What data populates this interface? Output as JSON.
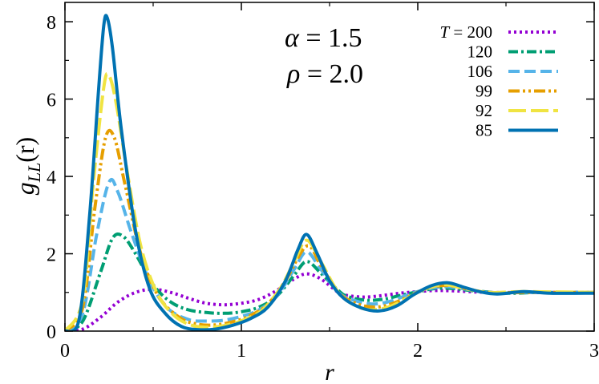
{
  "chart_data": {
    "type": "line",
    "xlabel": "r",
    "ylabel_main": "g",
    "ylabel_sub": "LL",
    "ylabel_arg": "(r)",
    "xlim": [
      0,
      3
    ],
    "ylim": [
      0,
      8.5
    ],
    "x_ticks": [
      0,
      1,
      2,
      3
    ],
    "y_ticks": [
      0,
      2,
      4,
      6,
      8
    ],
    "grid": false,
    "legend_placement": "top-right",
    "legend_prefix": "T = ",
    "annotations": [
      {
        "name": "alpha",
        "symbol": "α",
        "text": " = 1.5"
      },
      {
        "name": "rho",
        "symbol": "ρ",
        "text": " = 2.0"
      }
    ],
    "series": [
      {
        "name": "200",
        "color": "#9400d3",
        "dash": "3,4",
        "width": 4,
        "points": [
          [
            0,
            0
          ],
          [
            0.1,
            0.05
          ],
          [
            0.2,
            0.35
          ],
          [
            0.3,
            0.75
          ],
          [
            0.4,
            1.0
          ],
          [
            0.5,
            1.08
          ],
          [
            0.6,
            1.0
          ],
          [
            0.7,
            0.85
          ],
          [
            0.8,
            0.72
          ],
          [
            0.9,
            0.68
          ],
          [
            1.0,
            0.72
          ],
          [
            1.1,
            0.82
          ],
          [
            1.2,
            1.05
          ],
          [
            1.3,
            1.35
          ],
          [
            1.37,
            1.48
          ],
          [
            1.45,
            1.35
          ],
          [
            1.55,
            1.0
          ],
          [
            1.6,
            0.92
          ],
          [
            1.7,
            0.88
          ],
          [
            1.8,
            0.92
          ],
          [
            1.9,
            0.98
          ],
          [
            2.0,
            1.02
          ],
          [
            2.1,
            1.05
          ],
          [
            2.2,
            1.04
          ],
          [
            2.4,
            1.0
          ],
          [
            2.6,
            1.0
          ],
          [
            2.8,
            1.0
          ],
          [
            3.0,
            1.0
          ]
        ]
      },
      {
        "name": "120",
        "color": "#009e73",
        "dash": "12,4,3,4",
        "width": 4,
        "points": [
          [
            0,
            0
          ],
          [
            0.1,
            0.25
          ],
          [
            0.2,
            1.5
          ],
          [
            0.27,
            2.4
          ],
          [
            0.33,
            2.45
          ],
          [
            0.4,
            2.0
          ],
          [
            0.5,
            1.2
          ],
          [
            0.6,
            0.75
          ],
          [
            0.7,
            0.55
          ],
          [
            0.8,
            0.48
          ],
          [
            0.9,
            0.46
          ],
          [
            1.0,
            0.5
          ],
          [
            1.1,
            0.62
          ],
          [
            1.2,
            0.9
          ],
          [
            1.3,
            1.45
          ],
          [
            1.37,
            1.8
          ],
          [
            1.45,
            1.5
          ],
          [
            1.55,
            1.05
          ],
          [
            1.6,
            0.9
          ],
          [
            1.7,
            0.8
          ],
          [
            1.8,
            0.82
          ],
          [
            1.9,
            0.92
          ],
          [
            2.0,
            1.02
          ],
          [
            2.1,
            1.1
          ],
          [
            2.2,
            1.1
          ],
          [
            2.3,
            1.05
          ],
          [
            2.5,
            0.98
          ],
          [
            2.7,
            1.0
          ],
          [
            3.0,
            1.0
          ]
        ]
      },
      {
        "name": "106",
        "color": "#56b4e9",
        "dash": "14,6",
        "width": 4,
        "points": [
          [
            0,
            0
          ],
          [
            0.1,
            0.45
          ],
          [
            0.18,
            2.5
          ],
          [
            0.25,
            3.85
          ],
          [
            0.3,
            3.6
          ],
          [
            0.38,
            2.5
          ],
          [
            0.48,
            1.3
          ],
          [
            0.58,
            0.6
          ],
          [
            0.7,
            0.3
          ],
          [
            0.8,
            0.26
          ],
          [
            0.9,
            0.28
          ],
          [
            1.0,
            0.38
          ],
          [
            1.1,
            0.55
          ],
          [
            1.2,
            0.9
          ],
          [
            1.3,
            1.6
          ],
          [
            1.37,
            2.05
          ],
          [
            1.45,
            1.6
          ],
          [
            1.55,
            1.0
          ],
          [
            1.65,
            0.78
          ],
          [
            1.75,
            0.7
          ],
          [
            1.85,
            0.78
          ],
          [
            1.95,
            0.95
          ],
          [
            2.05,
            1.08
          ],
          [
            2.15,
            1.15
          ],
          [
            2.25,
            1.1
          ],
          [
            2.4,
            1.0
          ],
          [
            2.6,
            1.0
          ],
          [
            3.0,
            1.0
          ]
        ]
      },
      {
        "name": "99",
        "color": "#e69f00",
        "dash": "14,4,3,4,3,4",
        "width": 4,
        "points": [
          [
            0,
            0
          ],
          [
            0.1,
            0.6
          ],
          [
            0.17,
            3.2
          ],
          [
            0.23,
            5.0
          ],
          [
            0.28,
            5.0
          ],
          [
            0.34,
            3.8
          ],
          [
            0.43,
            2.0
          ],
          [
            0.53,
            0.9
          ],
          [
            0.65,
            0.35
          ],
          [
            0.75,
            0.18
          ],
          [
            0.85,
            0.16
          ],
          [
            0.95,
            0.24
          ],
          [
            1.05,
            0.4
          ],
          [
            1.15,
            0.7
          ],
          [
            1.25,
            1.3
          ],
          [
            1.37,
            2.2
          ],
          [
            1.45,
            1.7
          ],
          [
            1.55,
            1.0
          ],
          [
            1.65,
            0.72
          ],
          [
            1.75,
            0.62
          ],
          [
            1.85,
            0.7
          ],
          [
            1.95,
            0.9
          ],
          [
            2.05,
            1.1
          ],
          [
            2.15,
            1.18
          ],
          [
            2.25,
            1.12
          ],
          [
            2.4,
            1.0
          ],
          [
            2.6,
            1.0
          ],
          [
            3.0,
            1.0
          ]
        ]
      },
      {
        "name": "92",
        "color": "#f0e442",
        "dash": "22,6",
        "width": 4,
        "points": [
          [
            0,
            0
          ],
          [
            0.1,
            0.8
          ],
          [
            0.16,
            3.8
          ],
          [
            0.22,
            6.3
          ],
          [
            0.25,
            6.6
          ],
          [
            0.29,
            5.9
          ],
          [
            0.35,
            4.2
          ],
          [
            0.43,
            2.2
          ],
          [
            0.52,
            1.0
          ],
          [
            0.62,
            0.4
          ],
          [
            0.72,
            0.15
          ],
          [
            0.82,
            0.1
          ],
          [
            0.92,
            0.16
          ],
          [
            1.02,
            0.3
          ],
          [
            1.12,
            0.55
          ],
          [
            1.22,
            1.1
          ],
          [
            1.3,
            1.8
          ],
          [
            1.37,
            2.35
          ],
          [
            1.45,
            1.8
          ],
          [
            1.55,
            1.0
          ],
          [
            1.65,
            0.65
          ],
          [
            1.75,
            0.55
          ],
          [
            1.85,
            0.65
          ],
          [
            1.95,
            0.88
          ],
          [
            2.05,
            1.1
          ],
          [
            2.15,
            1.2
          ],
          [
            2.25,
            1.12
          ],
          [
            2.4,
            1.0
          ],
          [
            2.6,
            1.02
          ],
          [
            3.0,
            1.0
          ]
        ]
      },
      {
        "name": "85",
        "color": "#0072b2",
        "dash": "",
        "width": 4,
        "points": [
          [
            0,
            0
          ],
          [
            0.08,
            0.3
          ],
          [
            0.14,
            3.0
          ],
          [
            0.19,
            6.2
          ],
          [
            0.22,
            7.9
          ],
          [
            0.24,
            8.1
          ],
          [
            0.27,
            7.3
          ],
          [
            0.32,
            5.2
          ],
          [
            0.4,
            2.6
          ],
          [
            0.48,
            1.1
          ],
          [
            0.57,
            0.45
          ],
          [
            0.66,
            0.12
          ],
          [
            0.75,
            0.04
          ],
          [
            0.85,
            0.05
          ],
          [
            0.95,
            0.15
          ],
          [
            1.05,
            0.32
          ],
          [
            1.15,
            0.62
          ],
          [
            1.25,
            1.3
          ],
          [
            1.32,
            2.1
          ],
          [
            1.37,
            2.5
          ],
          [
            1.43,
            2.0
          ],
          [
            1.5,
            1.3
          ],
          [
            1.58,
            0.85
          ],
          [
            1.68,
            0.6
          ],
          [
            1.78,
            0.52
          ],
          [
            1.88,
            0.65
          ],
          [
            1.98,
            0.95
          ],
          [
            2.08,
            1.18
          ],
          [
            2.17,
            1.25
          ],
          [
            2.25,
            1.15
          ],
          [
            2.35,
            1.02
          ],
          [
            2.45,
            0.96
          ],
          [
            2.6,
            1.02
          ],
          [
            2.75,
            0.98
          ],
          [
            3.0,
            0.98
          ]
        ]
      }
    ]
  }
}
